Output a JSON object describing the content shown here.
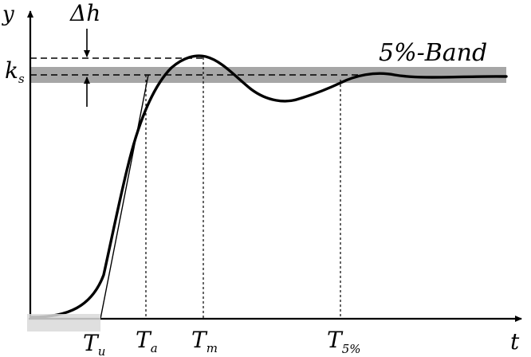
{
  "labels": {
    "y_axis": "y",
    "t_axis": "t",
    "delta_h": "Δh",
    "ks_main": "k",
    "ks_sub": "s",
    "band": "5%-Band",
    "tu_main": "T",
    "tu_sub": "u",
    "ta_main": "T",
    "ta_sub": "a",
    "tm_main": "T",
    "tm_sub": "m",
    "t5_main": "T",
    "t5_sub": "5%"
  }
}
